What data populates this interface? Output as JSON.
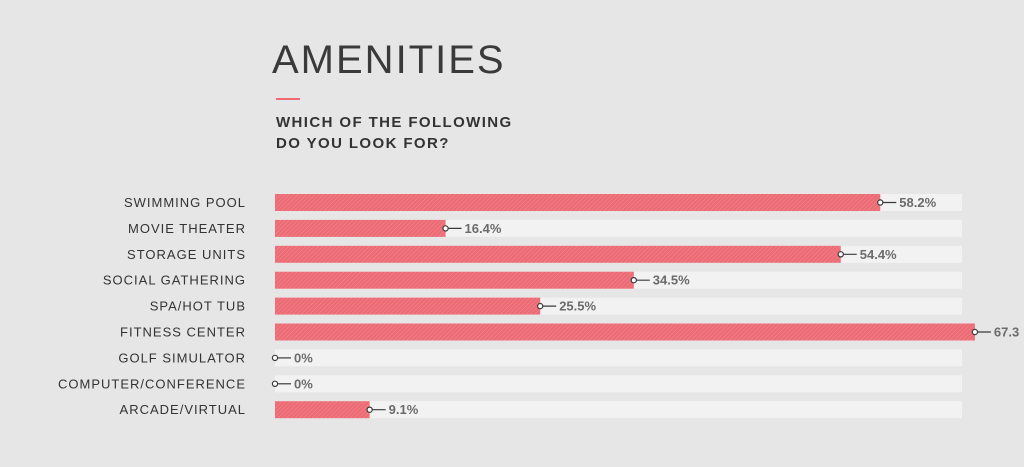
{
  "header": {
    "title": "AMENITIES",
    "subtitle_line1": "WHICH OF THE FOLLOWING",
    "subtitle_line2": "DO YOU LOOK FOR?"
  },
  "colors": {
    "background": "#e6e6e6",
    "track": "#f2f2f2",
    "bar": "#ec6b74",
    "accent": "#ec6b74"
  },
  "chart_data": {
    "type": "bar",
    "orientation": "horizontal",
    "xlim": [
      0,
      100
    ],
    "grid": false,
    "categories": [
      "SWIMMING POOL",
      "MOVIE THEATER",
      "STORAGE UNITS",
      "SOCIAL GATHERING",
      "SPA/HOT TUB",
      "FITNESS CENTER",
      "GOLF SIMULATOR",
      "COMPUTER/CONFERENCE",
      "ARCADE/VIRTUAL"
    ],
    "values": [
      58.2,
      16.4,
      54.4,
      34.5,
      25.5,
      67.3,
      0,
      0,
      9.1
    ],
    "value_labels": [
      "58.2%",
      "16.4%",
      "54.4%",
      "34.5%",
      "25.5%",
      "67.3",
      "0%",
      "0%",
      "9.1%"
    ]
  }
}
